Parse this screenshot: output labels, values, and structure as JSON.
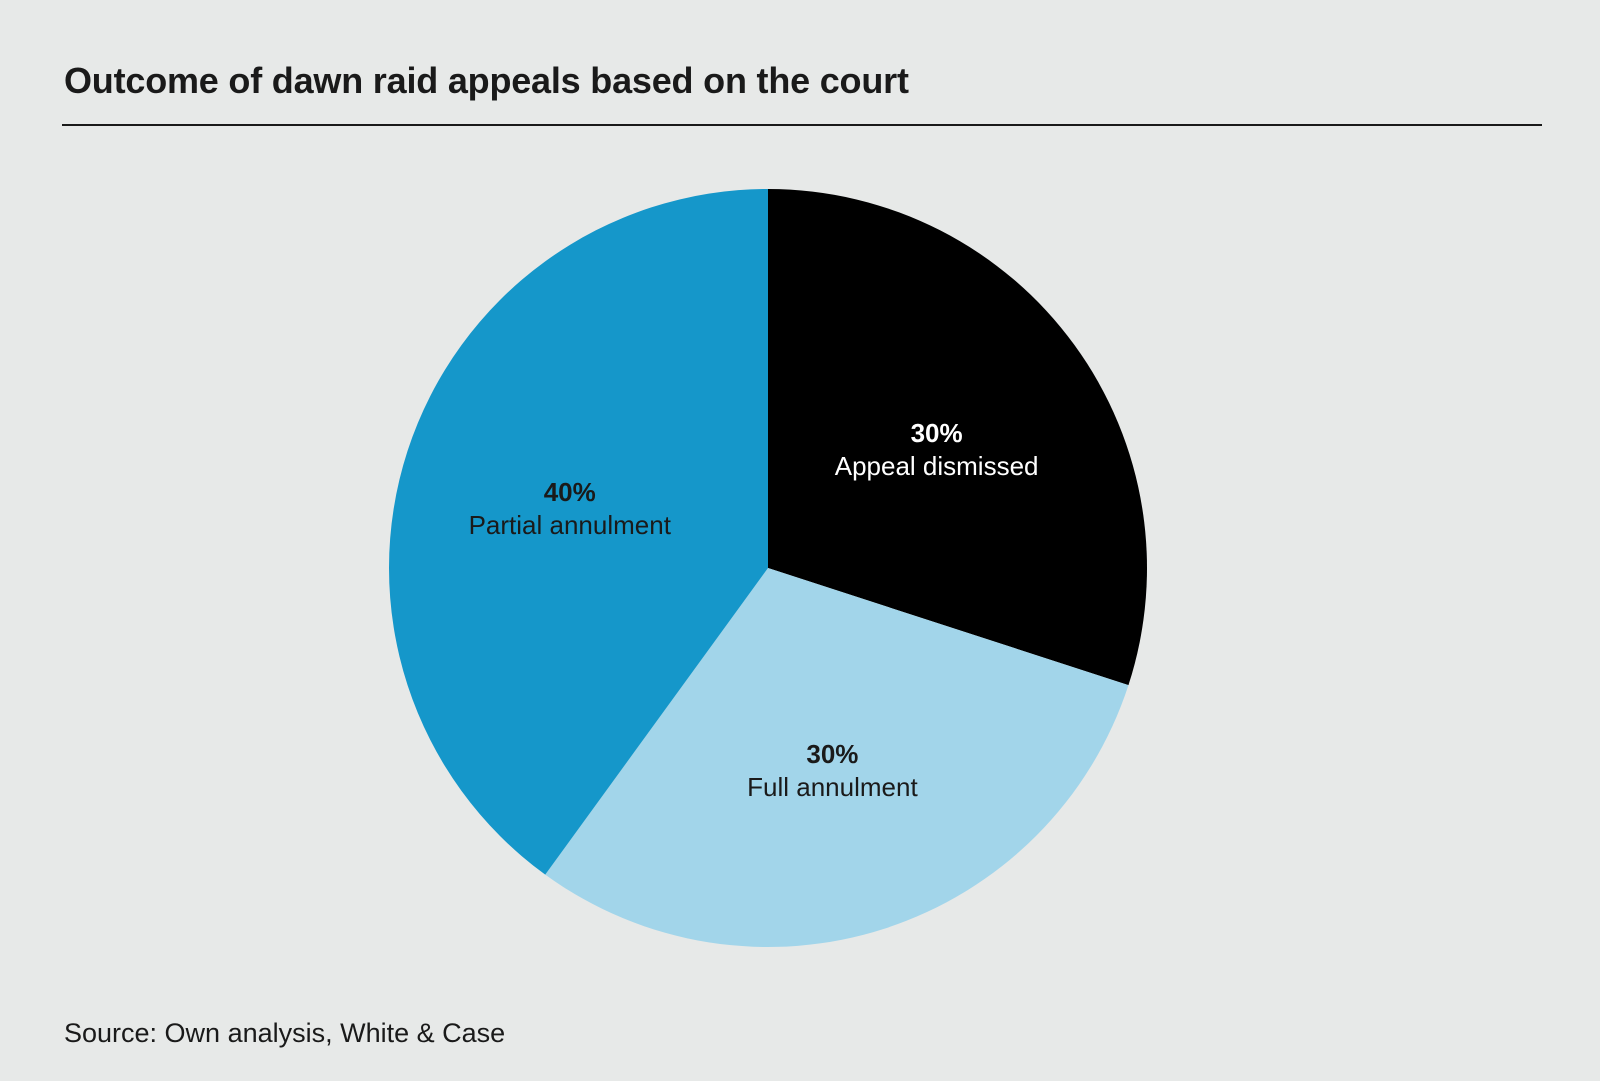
{
  "chart_data": {
    "type": "pie",
    "title": "Outcome of dawn raid appeals based on the court",
    "source": "Source: Own analysis, White & Case",
    "slices": [
      {
        "label": "Appeal dismissed",
        "value": 30,
        "value_label": "30%",
        "color": "#000000",
        "text_color": "#ffffff"
      },
      {
        "label": "Full annulment",
        "value": 30,
        "value_label": "30%",
        "color": "#a2d5ea",
        "text_color": "#1a1a1a"
      },
      {
        "label": "Partial annulment",
        "value": 40,
        "value_label": "40%",
        "color": "#1597ca",
        "text_color": "#1a1a1a"
      }
    ],
    "start_angle": "12 o'clock",
    "direction": "clockwise",
    "legend": "none"
  }
}
